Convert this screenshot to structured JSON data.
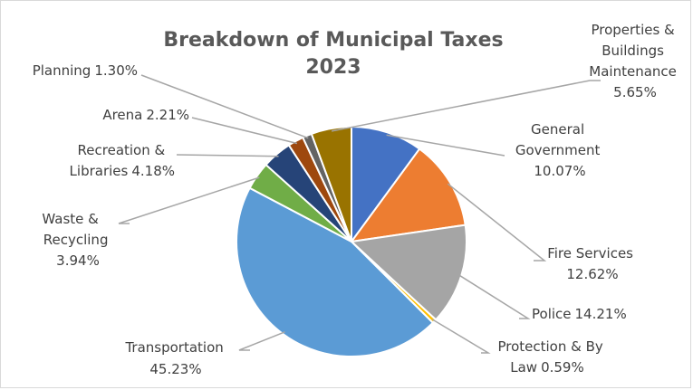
{
  "chart_data": {
    "type": "pie",
    "title": "Breakdown of Municipal Taxes",
    "subtitle": "2023",
    "slices": [
      {
        "label": "General Government",
        "value": 10.07,
        "text": "10.07%",
        "color": "#4472C4"
      },
      {
        "label": "Fire Services",
        "value": 12.62,
        "text": "12.62%",
        "color": "#ED7D31"
      },
      {
        "label": "Police",
        "value": 14.21,
        "text": "14.21%",
        "color": "#A5A5A5"
      },
      {
        "label": "Protection & By Law",
        "value": 0.59,
        "text": "0.59%",
        "color": "#FFC000"
      },
      {
        "label": "Transportation",
        "value": 45.23,
        "text": "45.23%",
        "color": "#5B9BD5"
      },
      {
        "label": "Waste & Recycling",
        "value": 3.94,
        "text": "3.94%",
        "color": "#70AD47"
      },
      {
        "label": "Recreation & Libraries",
        "value": 4.18,
        "text": "4.18%",
        "color": "#264478"
      },
      {
        "label": "Arena",
        "value": 2.21,
        "text": "2.21%",
        "color": "#9E480E"
      },
      {
        "label": "Planning",
        "value": 1.3,
        "text": "1.30%",
        "color": "#636363"
      },
      {
        "label": "Properties & Buildings Maintenance",
        "value": 5.65,
        "text": "5.65%",
        "color": "#997300"
      }
    ],
    "legend": "none",
    "data_labels": "outside with leader lines"
  }
}
